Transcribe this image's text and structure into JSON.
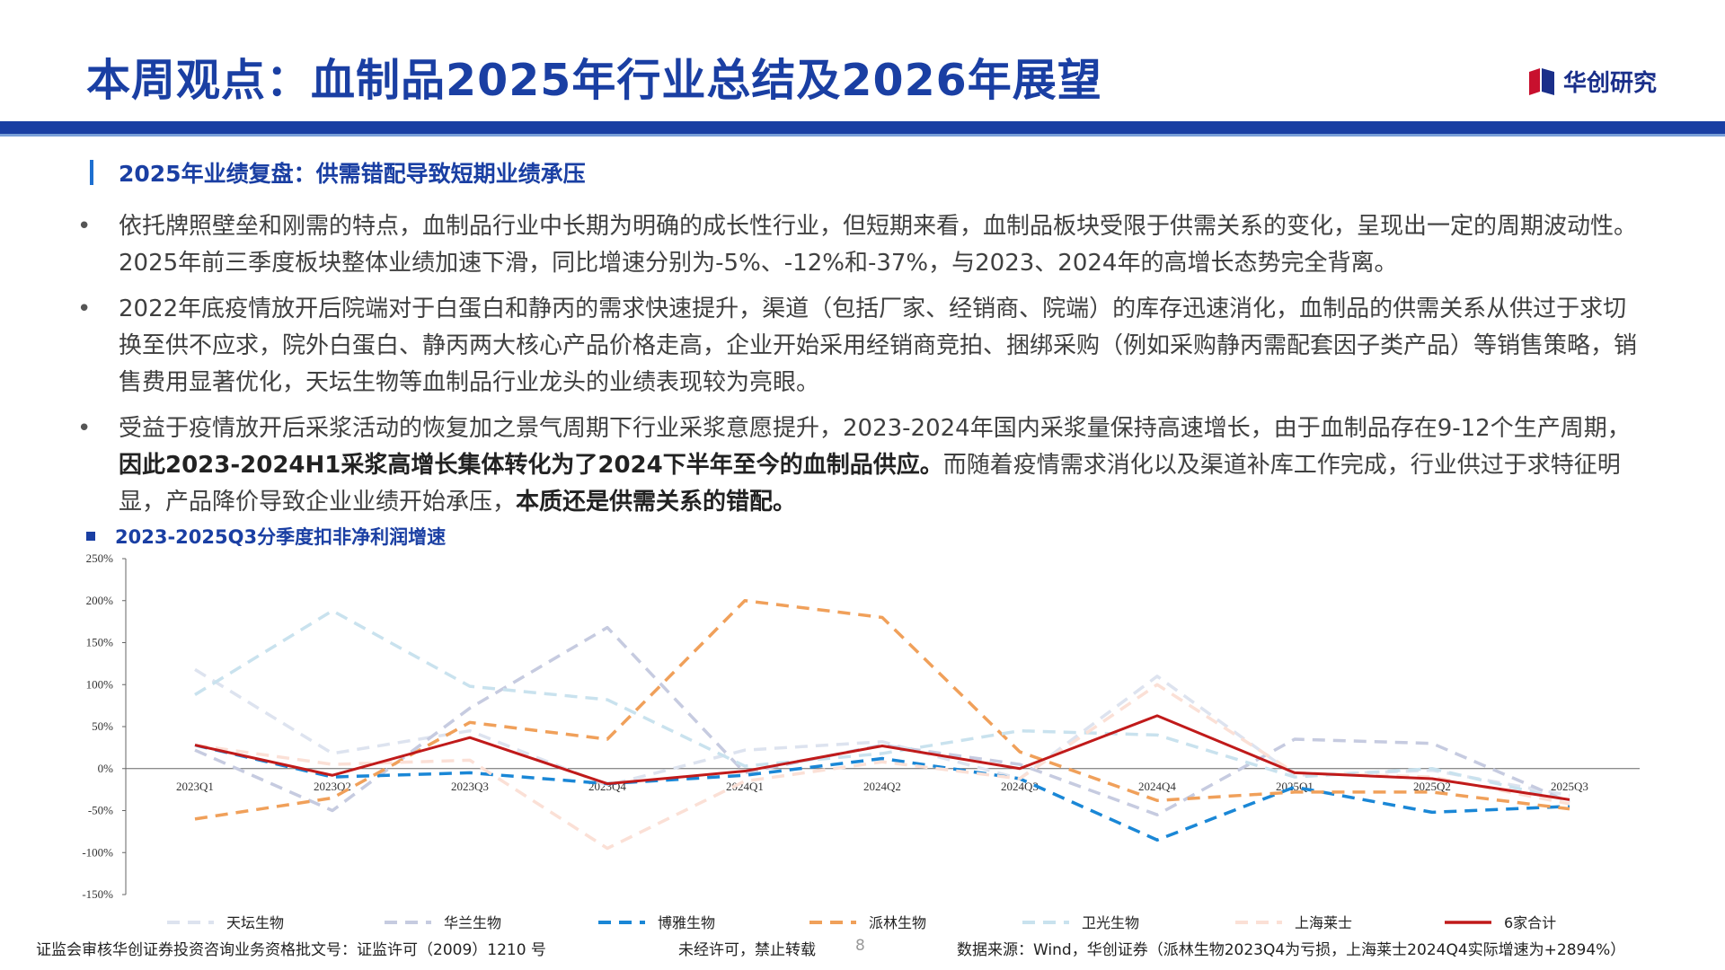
{
  "header": {
    "title": "本周观点：血制品2025年行业总结及2026年展望",
    "logo_text": "华创研究"
  },
  "section": {
    "title": "2025年业绩复盘：供需错配导致短期业绩承压"
  },
  "bullets": [
    {
      "text": "依托牌照壁垒和刚需的特点，血制品行业中长期为明确的成长性行业，但短期来看，血制品板块受限于供需关系的变化，呈现出一定的周期波动性。2025年前三季度板块整体业绩加速下滑，同比增速分别为-5%、-12%和-37%，与2023、2024年的高增长态势完全背离。"
    },
    {
      "text": "2022年底疫情放开后院端对于白蛋白和静丙的需求快速提升，渠道（包括厂家、经销商、院端）的库存迅速消化，血制品的供需关系从供过于求切换至供不应求，院外白蛋白、静丙两大核心产品价格走高，企业开始采用经销商竞拍、捆绑采购（例如采购静丙需配套因子类产品）等销售策略，销售费用显著优化，天坛生物等血制品行业龙头的业绩表现较为亮眼。"
    },
    {
      "pre": "受益于疫情放开后采浆活动的恢复加之景气周期下行业采浆意愿提升，2023-2024年国内采浆量保持高速增长，由于血制品存在9-12个生产周期，",
      "bold1": "因此2023-2024H1采浆高增长集体转化为了2024下半年至今的血制品供应。",
      "mid": "而随着疫情需求消化以及渠道补库工作完成，行业供过于求特征明显，产品降价导致企业业绩开始承压，",
      "bold2": "本质还是供需关系的错配。"
    }
  ],
  "chart_title": "2023-2025Q3分季度扣非净利润增速",
  "chart_data": {
    "type": "line",
    "categories": [
      "2023Q1",
      "2023Q2",
      "2023Q3",
      "2023Q4",
      "2024Q1",
      "2024Q2",
      "2024Q3",
      "2024Q4",
      "2025Q1",
      "2025Q2",
      "2025Q3"
    ],
    "y_ticks": [
      "250%",
      "200%",
      "150%",
      "100%",
      "50%",
      "0%",
      "-50%",
      "-100%",
      "-150%"
    ],
    "ylim": [
      -150,
      250
    ],
    "series": [
      {
        "name": "天坛生物",
        "color": "#dde3ef",
        "dash": "dash",
        "width": 3.5,
        "values": [
          118,
          18,
          45,
          -20,
          22,
          32,
          -12,
          110,
          -8,
          -2,
          -32
        ]
      },
      {
        "name": "华兰生物",
        "color": "#c6cbe0",
        "dash": "dash",
        "width": 3.5,
        "values": [
          22,
          -50,
          72,
          168,
          -5,
          28,
          5,
          -55,
          35,
          30,
          -40
        ]
      },
      {
        "name": "博雅生物",
        "color": "#1a87d6",
        "dash": "dash",
        "width": 3.5,
        "values": [
          28,
          -10,
          -5,
          -18,
          -8,
          12,
          -12,
          -85,
          -22,
          -52,
          -45
        ]
      },
      {
        "name": "派林生物",
        "color": "#f0a05a",
        "dash": "dash",
        "width": 3.5,
        "values": [
          -60,
          -35,
          55,
          35,
          200,
          180,
          20,
          -38,
          -28,
          -28,
          -48
        ]
      },
      {
        "name": "卫光生物",
        "color": "#c9e2ee",
        "dash": "dash",
        "width": 3.5,
        "values": [
          88,
          188,
          98,
          82,
          3,
          18,
          45,
          40,
          -10,
          0,
          -38
        ]
      },
      {
        "name": "上海莱士",
        "color": "#fbe0d6",
        "dash": "dash",
        "width": 3.5,
        "values": [
          28,
          5,
          10,
          -95,
          -15,
          8,
          -12,
          100,
          -5,
          -10,
          -42
        ]
      },
      {
        "name": "6家合计",
        "color": "#c01a1a",
        "dash": "solid",
        "width": 3,
        "values": [
          28,
          -8,
          37,
          -18,
          -3,
          27,
          0,
          63,
          -5,
          -12,
          -37
        ]
      }
    ]
  },
  "footer": {
    "license": "证监会审核华创证券投资咨询业务资格批文号：证监许可（2009）1210 号",
    "copyright": "未经许可，禁止转载",
    "page": "8",
    "source": "数据来源：Wind，华创证券（派林生物2023Q4为亏损，上海莱士2024Q4实际增速为+2894%）"
  }
}
